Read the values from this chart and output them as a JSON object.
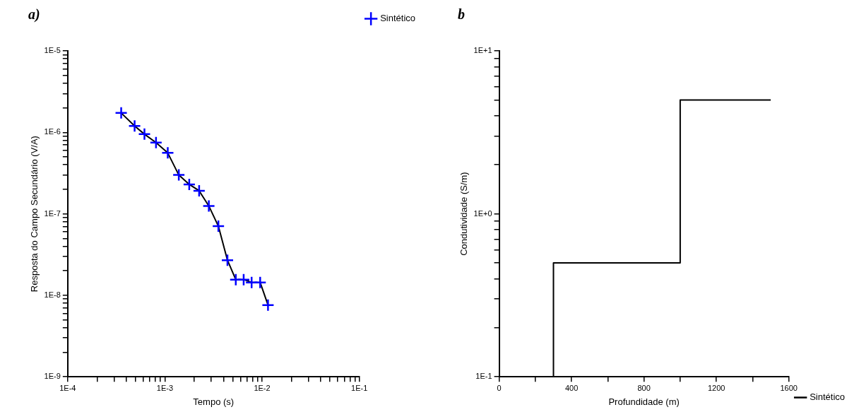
{
  "chart_data": [
    {
      "type": "line",
      "title": "a)",
      "xlabel": "Tempo (s)",
      "ylabel": "Resposta do Campo Secundário (V/A)",
      "log": "xy",
      "marker": "cross",
      "line_style": "solid",
      "grid": false,
      "legend": "top right",
      "x": [
        0.000355,
        0.000488,
        0.000616,
        0.00081,
        0.00107,
        0.00139,
        0.00178,
        0.00225,
        0.00283,
        0.00355,
        0.0044,
        0.00536,
        0.00646,
        0.0078,
        0.00955,
        0.0115
      ],
      "series": [
        {
          "name": "Sintético",
          "color": "#0000ff",
          "values": [
            1.73e-06,
            1.2e-06,
            9.5e-07,
            7.5e-07,
            5.6e-07,
            3e-07,
            2.3e-07,
            1.92e-07,
            1.25e-07,
            7.05e-08,
            2.7e-08,
            1.56e-08,
            1.56e-08,
            1.44e-08,
            1.44e-08,
            7.6e-09
          ]
        }
      ],
      "xlim": [
        0.0001,
        0.1
      ],
      "ylim": [
        1e-09,
        1e-05
      ],
      "xticks": [
        {
          "value": 0.0001,
          "label": "1E-4"
        },
        {
          "value": 0.0002,
          "label": null
        },
        {
          "value": 0.0003,
          "label": null
        },
        {
          "value": 0.0004,
          "label": null
        },
        {
          "value": 0.0005,
          "label": null
        },
        {
          "value": 0.0006,
          "label": null
        },
        {
          "value": 0.0007,
          "label": null
        },
        {
          "value": 0.0008,
          "label": null
        },
        {
          "value": 0.0009,
          "label": null
        },
        {
          "value": 0.001,
          "label": "1E-3"
        },
        {
          "value": 0.002,
          "label": null
        },
        {
          "value": 0.003,
          "label": null
        },
        {
          "value": 0.004,
          "label": null
        },
        {
          "value": 0.005,
          "label": null
        },
        {
          "value": 0.006,
          "label": null
        },
        {
          "value": 0.007,
          "label": null
        },
        {
          "value": 0.008,
          "label": null
        },
        {
          "value": 0.009,
          "label": null
        },
        {
          "value": 0.01,
          "label": "1E-2"
        },
        {
          "value": 0.02,
          "label": null
        },
        {
          "value": 0.03,
          "label": null
        },
        {
          "value": 0.04,
          "label": null
        },
        {
          "value": 0.05,
          "label": null
        },
        {
          "value": 0.06,
          "label": null
        },
        {
          "value": 0.07,
          "label": null
        },
        {
          "value": 0.08,
          "label": null
        },
        {
          "value": 0.09,
          "label": null
        },
        {
          "value": 0.1,
          "label": "1E-1"
        }
      ],
      "yticks": [
        {
          "value": 1e-09,
          "label": "1E-9"
        },
        {
          "value": 2e-09,
          "label": null
        },
        {
          "value": 3e-09,
          "label": null
        },
        {
          "value": 4e-09,
          "label": null
        },
        {
          "value": 5e-09,
          "label": null
        },
        {
          "value": 6e-09,
          "label": null
        },
        {
          "value": 7e-09,
          "label": null
        },
        {
          "value": 8e-09,
          "label": null
        },
        {
          "value": 9e-09,
          "label": null
        },
        {
          "value": 1e-08,
          "label": "1E-8"
        },
        {
          "value": 2e-08,
          "label": null
        },
        {
          "value": 3e-08,
          "label": null
        },
        {
          "value": 4e-08,
          "label": null
        },
        {
          "value": 5e-08,
          "label": null
        },
        {
          "value": 6e-08,
          "label": null
        },
        {
          "value": 7e-08,
          "label": null
        },
        {
          "value": 8e-08,
          "label": null
        },
        {
          "value": 9e-08,
          "label": null
        },
        {
          "value": 1e-07,
          "label": "1E-7"
        },
        {
          "value": 2e-07,
          "label": null
        },
        {
          "value": 3e-07,
          "label": null
        },
        {
          "value": 4e-07,
          "label": null
        },
        {
          "value": 5e-07,
          "label": null
        },
        {
          "value": 6e-07,
          "label": null
        },
        {
          "value": 7e-07,
          "label": null
        },
        {
          "value": 8e-07,
          "label": null
        },
        {
          "value": 9e-07,
          "label": null
        },
        {
          "value": 1e-06,
          "label": "1E-6"
        },
        {
          "value": 2e-06,
          "label": null
        },
        {
          "value": 3e-06,
          "label": null
        },
        {
          "value": 4e-06,
          "label": null
        },
        {
          "value": 5e-06,
          "label": null
        },
        {
          "value": 6e-06,
          "label": null
        },
        {
          "value": 7e-06,
          "label": null
        },
        {
          "value": 8e-06,
          "label": null
        },
        {
          "value": 9e-06,
          "label": null
        },
        {
          "value": 1e-05,
          "label": "1E-5"
        }
      ]
    },
    {
      "type": "step",
      "title": "b",
      "xlabel": "Profundidade (m)",
      "ylabel": "Condutividade (S/m)",
      "log": "y",
      "line_style": "solid",
      "grid": false,
      "legend": "bottom right",
      "x": [
        0,
        300,
        1000,
        1500
      ],
      "series": [
        {
          "name": "Sintético",
          "color": "#000000",
          "values": [
            0.1,
            0.5,
            5,
            5
          ]
        }
      ],
      "xlim": [
        0,
        1600
      ],
      "ylim": [
        0.1,
        10
      ],
      "xticks": [
        0,
        {
          "value": 200,
          "label": null
        },
        400,
        {
          "value": 600,
          "label": null
        },
        800,
        {
          "value": 1000,
          "label": null
        },
        1200,
        {
          "value": 1400,
          "label": null
        },
        1600
      ],
      "yticks": [
        {
          "value": 0.1,
          "label": "1E-1"
        },
        {
          "value": 0.2,
          "label": null
        },
        {
          "value": 0.3,
          "label": null
        },
        {
          "value": 0.4,
          "label": null
        },
        {
          "value": 0.5,
          "label": null
        },
        {
          "value": 0.6,
          "label": null
        },
        {
          "value": 0.7,
          "label": null
        },
        {
          "value": 0.8,
          "label": null
        },
        {
          "value": 0.9,
          "label": null
        },
        {
          "value": 1,
          "label": "1E+0"
        },
        {
          "value": 2,
          "label": null
        },
        {
          "value": 3,
          "label": null
        },
        {
          "value": 4,
          "label": null
        },
        {
          "value": 5,
          "label": null
        },
        {
          "value": 6,
          "label": null
        },
        {
          "value": 7,
          "label": null
        },
        {
          "value": 8,
          "label": null
        },
        {
          "value": 9,
          "label": null
        },
        {
          "value": 10,
          "label": "1E+1"
        }
      ]
    }
  ]
}
